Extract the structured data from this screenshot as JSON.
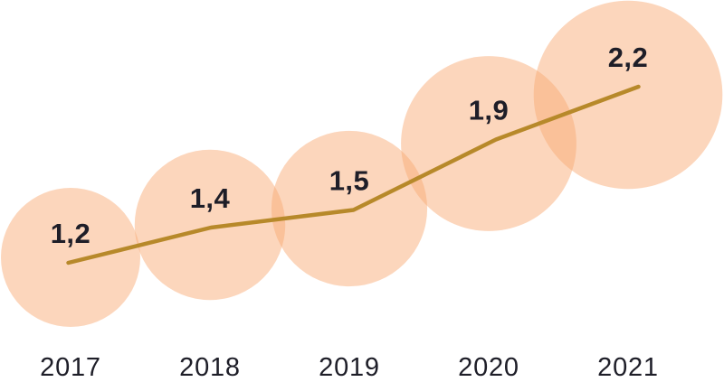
{
  "page": {
    "background_color": "#ffffff"
  },
  "chart_data": {
    "type": "bubble-line",
    "title": "",
    "categories": [
      "2017",
      "2018",
      "2019",
      "2020",
      "2021"
    ],
    "values": [
      1.2,
      1.4,
      1.5,
      1.9,
      2.2
    ],
    "value_labels": [
      "1,2",
      "1,4",
      "1,5",
      "1,9",
      "2,2"
    ],
    "decimal_separator": ",",
    "bubble_scale": "area-proportional",
    "grid": false,
    "axes_visible": false,
    "legend": "none",
    "colors": {
      "bubble_fill": "#F8AA73",
      "bubble_opacity": 0.48,
      "line": "#B7892A",
      "value_label": "#1E1E28",
      "year_label": "#1E1E28"
    }
  }
}
